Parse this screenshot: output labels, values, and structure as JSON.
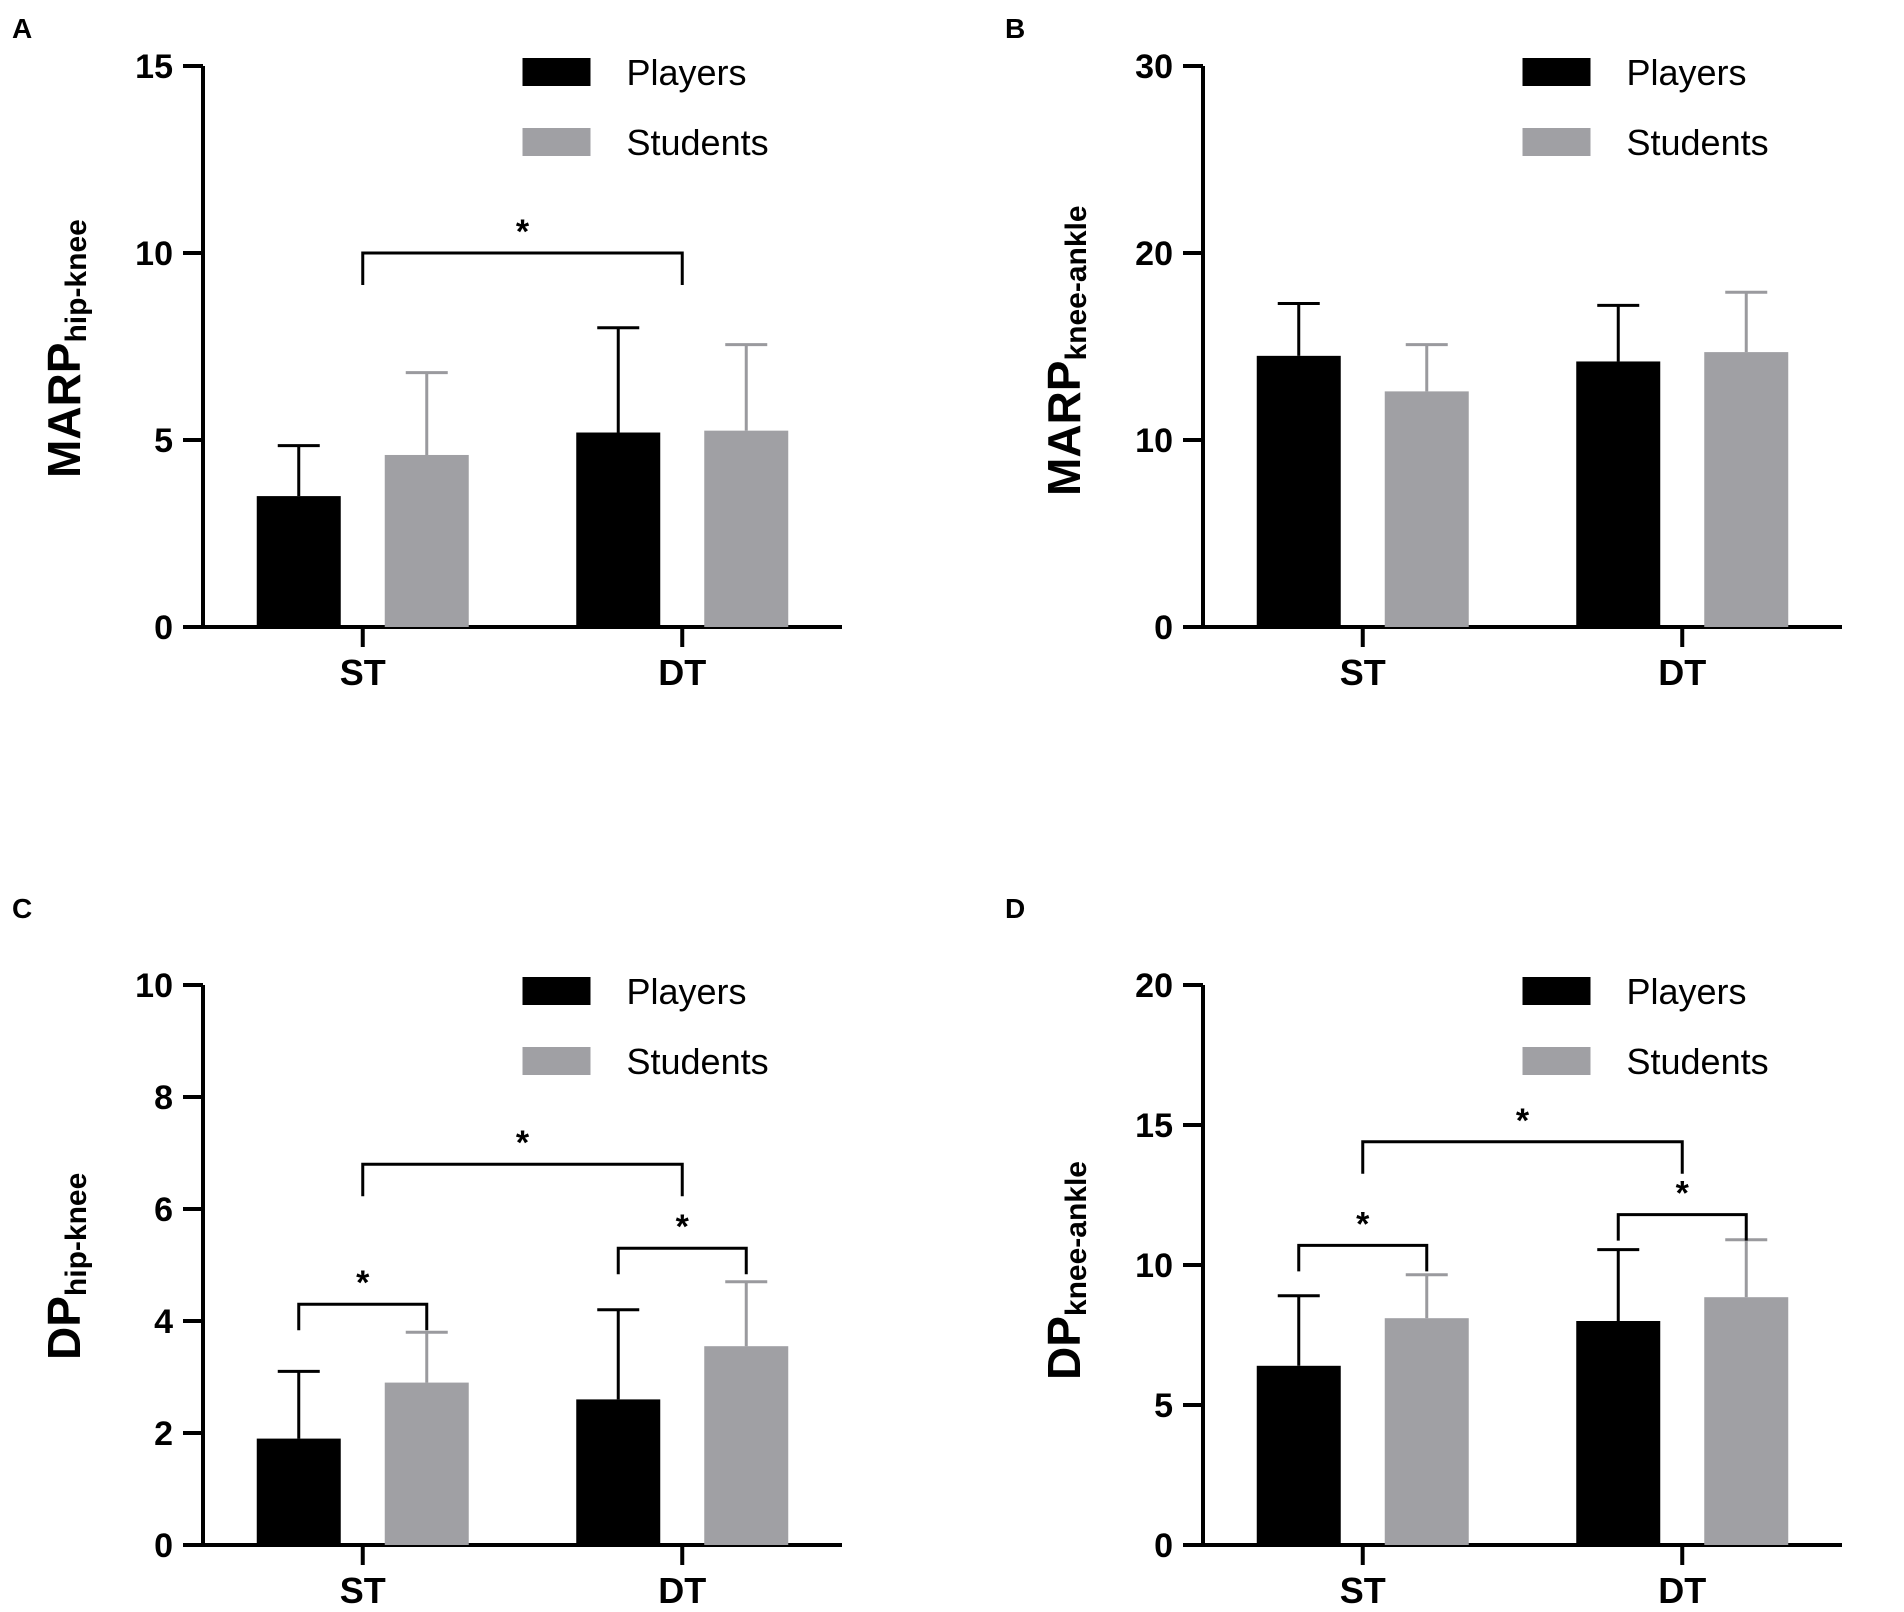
{
  "chart_data": [
    {
      "type": "bar",
      "panel": "A",
      "ylabel_main": "MARP",
      "ylabel_sub": "hip-knee",
      "xlabel": "",
      "categories": [
        "ST",
        "DT"
      ],
      "ylim": [
        0,
        15
      ],
      "yticks": [
        0,
        5,
        10,
        15
      ],
      "series": [
        {
          "name": "Players",
          "color": "#000000",
          "values": [
            3.5,
            5.2
          ],
          "errors": [
            1.35,
            2.8
          ]
        },
        {
          "name": "Students",
          "color": "#a0a0a4",
          "values": [
            4.6,
            5.25
          ],
          "errors": [
            2.2,
            2.3
          ]
        }
      ],
      "annotations": [
        {
          "label": "*",
          "from": "ST",
          "to": "DT",
          "level": 10.0
        }
      ]
    },
    {
      "type": "bar",
      "panel": "B",
      "ylabel_main": "MARP",
      "ylabel_sub": "knee-ankle",
      "xlabel": "",
      "categories": [
        "ST",
        "DT"
      ],
      "ylim": [
        0,
        30
      ],
      "yticks": [
        0,
        10,
        20,
        30
      ],
      "series": [
        {
          "name": "Players",
          "color": "#000000",
          "values": [
            14.5,
            14.2
          ],
          "errors": [
            2.8,
            3.0
          ]
        },
        {
          "name": "Students",
          "color": "#a0a0a4",
          "values": [
            12.6,
            14.7
          ],
          "errors": [
            2.5,
            3.2
          ]
        }
      ],
      "annotations": []
    },
    {
      "type": "bar",
      "panel": "C",
      "ylabel_main": "DP",
      "ylabel_sub": "hip-knee",
      "xlabel": "",
      "categories": [
        "ST",
        "DT"
      ],
      "ylim": [
        0,
        10
      ],
      "yticks": [
        0,
        2,
        4,
        6,
        8,
        10
      ],
      "series": [
        {
          "name": "Players",
          "color": "#000000",
          "values": [
            1.9,
            2.6
          ],
          "errors": [
            1.2,
            1.6
          ]
        },
        {
          "name": "Students",
          "color": "#a0a0a4",
          "values": [
            2.9,
            3.55
          ],
          "errors": [
            0.9,
            1.15
          ]
        }
      ],
      "annotations": [
        {
          "label": "*",
          "from": "ST",
          "to": "DT",
          "level": 6.8
        },
        {
          "label": "*",
          "within": "ST",
          "level": 4.3
        },
        {
          "label": "*",
          "within": "DT",
          "level": 5.3
        }
      ]
    },
    {
      "type": "bar",
      "panel": "D",
      "ylabel_main": "DP",
      "ylabel_sub": "knee-ankle",
      "xlabel": "",
      "categories": [
        "ST",
        "DT"
      ],
      "ylim": [
        0,
        20
      ],
      "yticks": [
        0,
        5,
        10,
        15,
        20
      ],
      "series": [
        {
          "name": "Players",
          "color": "#000000",
          "values": [
            6.4,
            8.0
          ],
          "errors": [
            2.5,
            2.55
          ]
        },
        {
          "name": "Students",
          "color": "#a0a0a4",
          "values": [
            8.1,
            8.85
          ],
          "errors": [
            1.55,
            2.05
          ]
        }
      ],
      "annotations": [
        {
          "label": "*",
          "from": "ST",
          "to": "DT",
          "level": 14.4
        },
        {
          "label": "*",
          "within": "ST",
          "level": 10.7
        },
        {
          "label": "*",
          "within": "DT",
          "level": 11.8
        }
      ]
    }
  ]
}
